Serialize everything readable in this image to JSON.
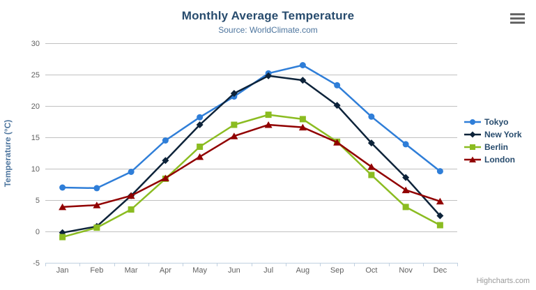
{
  "chart": {
    "title": "Monthly Average Temperature",
    "subtitle": "Source: WorldClimate.com",
    "credit": "Highcharts.com",
    "context_menu_icon": "hamburger-icon"
  },
  "chart_data": {
    "type": "line",
    "title": "Monthly Average Temperature",
    "subtitle": "Source: WorldClimate.com",
    "categories": [
      "Jan",
      "Feb",
      "Mar",
      "Apr",
      "May",
      "Jun",
      "Jul",
      "Aug",
      "Sep",
      "Oct",
      "Nov",
      "Dec"
    ],
    "xlabel": "",
    "ylabel": "Temperature (°C)",
    "ylim": [
      -5,
      30
    ],
    "yticks": [
      -5,
      0,
      5,
      10,
      15,
      20,
      25,
      30
    ],
    "grid": "horizontal",
    "legend_position": "right",
    "series": [
      {
        "name": "Tokyo",
        "color": "#2f7ed8",
        "marker": "circle",
        "values": [
          7.0,
          6.9,
          9.5,
          14.5,
          18.2,
          21.5,
          25.2,
          26.5,
          23.3,
          18.3,
          13.9,
          9.6
        ]
      },
      {
        "name": "New York",
        "color": "#0d233a",
        "marker": "diamond",
        "values": [
          -0.2,
          0.8,
          5.7,
          11.3,
          17.0,
          22.0,
          24.8,
          24.1,
          20.1,
          14.1,
          8.6,
          2.5
        ]
      },
      {
        "name": "Berlin",
        "color": "#8bbc21",
        "marker": "square",
        "values": [
          -0.9,
          0.6,
          3.5,
          8.4,
          13.5,
          17.0,
          18.6,
          17.9,
          14.3,
          9.0,
          3.9,
          1.0
        ]
      },
      {
        "name": "London",
        "color": "#910000",
        "marker": "triangle",
        "values": [
          3.9,
          4.2,
          5.7,
          8.5,
          11.9,
          15.2,
          17.0,
          16.6,
          14.2,
          10.3,
          6.6,
          4.8
        ]
      }
    ]
  },
  "colors": {
    "title": "#274b6d",
    "subtitle": "#4d759e",
    "axis_title": "#4d759e",
    "tick_label": "#606060",
    "grid": "#C0C0C0",
    "axis_line": "#C0D0E0",
    "legend_text": "#274b6d",
    "credit": "#999999",
    "menu_icon": "#666666",
    "background": "#FFFFFF"
  }
}
